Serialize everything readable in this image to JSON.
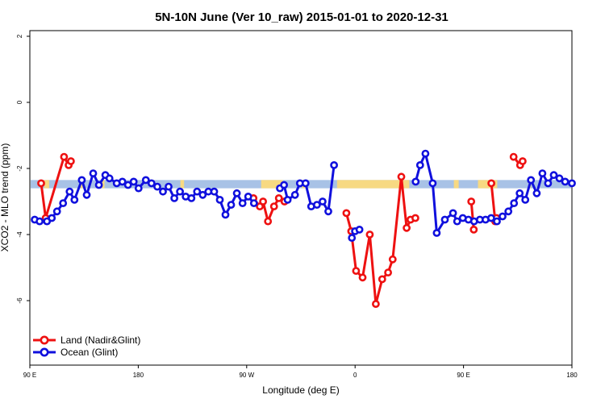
{
  "chart_data": {
    "type": "line",
    "title": "5N-10N June (Ver 10_raw)   2015-01-01 to 2020-12-31",
    "xlabel": "Longitude (deg E)",
    "ylabel": "XCO2 - MLO trend (ppm)",
    "x_ticks": [
      90,
      180,
      270,
      360,
      450,
      540
    ],
    "x_tick_labels": [
      "90 E",
      "180",
      "90 W",
      "0",
      "90 E",
      "180"
    ],
    "xlim": [
      90,
      540
    ],
    "y_ticks": [
      2,
      0,
      -2,
      -4,
      -6
    ],
    "y_tick_labels": [
      "2",
      "0",
      "-2",
      "-4",
      "-6"
    ],
    "ylim": [
      -8,
      2.1
    ],
    "legend_position": "bottom-left",
    "colors": {
      "land": "#ee1111",
      "ocean": "#1010dd",
      "map_ocean": "#a8c2e6",
      "map_land": "#f7d982"
    },
    "series": [
      {
        "name": "Land (Nadir&Glint)",
        "segments": [
          [
            [
              99.4,
              -2.45
            ],
            [
              103.1,
              -3.5
            ],
            [
              118.4,
              -1.65
            ],
            [
              122.2,
              -1.9
            ],
            [
              124.1,
              -1.78
            ]
          ],
          [
            [
              275.6,
              -2.9
            ],
            [
              280.9,
              -3.15
            ],
            [
              283.6,
              -3.0
            ],
            [
              287.7,
              -3.6
            ],
            [
              292.7,
              -3.15
            ],
            [
              296.7,
              -2.9
            ],
            [
              301.4,
              -3.0
            ]
          ],
          [
            [
              352.8,
              -3.35
            ],
            [
              356.8,
              -3.9
            ],
            [
              360.8,
              -5.1
            ],
            [
              366.2,
              -5.3
            ],
            [
              372.2,
              -4.0
            ],
            [
              377.2,
              -6.1
            ],
            [
              382.5,
              -5.35
            ],
            [
              387.4,
              -5.15
            ],
            [
              391.2,
              -4.75
            ],
            [
              398.4,
              -2.25
            ],
            [
              402.8,
              -3.8
            ],
            [
              406.0,
              -3.55
            ],
            [
              410.0,
              -3.5
            ]
          ],
          [
            [
              456.4,
              -3.0
            ],
            [
              458.5,
              -3.85
            ]
          ],
          [
            [
              473.1,
              -2.45
            ],
            [
              476.3,
              -3.6
            ]
          ],
          [
            [
              477.4,
              -3.5
            ]
          ],
          [
            [
              491.6,
              -1.65
            ],
            [
              497.0,
              -1.9
            ],
            [
              499.1,
              -1.78
            ]
          ]
        ]
      },
      {
        "name": "Ocean (Glint)",
        "segments": [
          [
            [
              94.0,
              -3.55
            ],
            [
              98.1,
              -3.6
            ],
            [
              104.2,
              -3.6
            ],
            [
              108.2,
              -3.5
            ],
            [
              112.6,
              -3.3
            ],
            [
              117.6,
              -3.05
            ],
            [
              123.0,
              -2.7
            ],
            [
              127.0,
              -2.95
            ],
            [
              133.1,
              -2.35
            ],
            [
              137.2,
              -2.8
            ],
            [
              142.6,
              -2.15
            ],
            [
              147.3,
              -2.5
            ],
            [
              152.7,
              -2.2
            ],
            [
              156.1,
              -2.3
            ],
            [
              162.1,
              -2.45
            ],
            [
              166.8,
              -2.4
            ],
            [
              171.5,
              -2.5
            ],
            [
              176.2,
              -2.4
            ],
            [
              180.3,
              -2.6
            ],
            [
              186.3,
              -2.35
            ],
            [
              191.0,
              -2.45
            ],
            [
              195.8,
              -2.55
            ],
            [
              200.5,
              -2.7
            ],
            [
              205.2,
              -2.55
            ],
            [
              209.9,
              -2.9
            ],
            [
              214.6,
              -2.7
            ],
            [
              219.4,
              -2.85
            ],
            [
              224.1,
              -2.9
            ],
            [
              228.8,
              -2.7
            ],
            [
              233.5,
              -2.8
            ],
            [
              238.2,
              -2.7
            ],
            [
              243.0,
              -2.7
            ],
            [
              247.7,
              -2.95
            ],
            [
              252.4,
              -3.4
            ],
            [
              257.1,
              -3.1
            ],
            [
              261.8,
              -2.75
            ],
            [
              266.6,
              -3.05
            ],
            [
              271.3,
              -2.85
            ],
            [
              276.0,
              -3.05
            ]
          ],
          [
            [
              297.6,
              -2.6
            ],
            [
              301.0,
              -2.5
            ],
            [
              304.0,
              -2.95
            ],
            [
              310.1,
              -2.8
            ],
            [
              314.2,
              -2.45
            ],
            [
              318.9,
              -2.45
            ],
            [
              323.6,
              -3.15
            ],
            [
              328.3,
              -3.1
            ],
            [
              333.0,
              -3.0
            ],
            [
              337.8,
              -3.3
            ],
            [
              342.5,
              -1.9
            ]
          ],
          [
            [
              357.3,
              -4.1
            ],
            [
              359.9,
              -3.9
            ],
            [
              363.6,
              -3.85
            ]
          ],
          [
            [
              410.3,
              -2.4
            ],
            [
              414.0,
              -1.9
            ],
            [
              418.4,
              -1.55
            ],
            [
              424.4,
              -2.45
            ],
            [
              427.8,
              -3.95
            ],
            [
              434.5,
              -3.55
            ],
            [
              441.3,
              -3.35
            ],
            [
              444.7,
              -3.6
            ],
            [
              449.4,
              -3.5
            ],
            [
              454.1,
              -3.55
            ],
            [
              458.8,
              -3.6
            ],
            [
              463.6,
              -3.55
            ],
            [
              468.3,
              -3.55
            ],
            [
              473.0,
              -3.5
            ],
            [
              477.7,
              -3.6
            ],
            [
              482.4,
              -3.45
            ],
            [
              487.2,
              -3.3
            ],
            [
              491.9,
              -3.05
            ],
            [
              496.6,
              -2.75
            ],
            [
              501.3,
              -2.95
            ],
            [
              506.0,
              -2.35
            ],
            [
              510.8,
              -2.75
            ],
            [
              515.5,
              -2.15
            ],
            [
              520.2,
              -2.45
            ],
            [
              524.9,
              -2.2
            ],
            [
              529.6,
              -2.3
            ],
            [
              534.4,
              -2.4
            ],
            [
              540.0,
              -2.45
            ]
          ]
        ]
      }
    ],
    "map_band": {
      "y_range": [
        -2.35,
        -2.6
      ],
      "land_segments": [
        [
          102,
          106
        ],
        [
          132,
          134
        ],
        [
          150,
          152
        ],
        [
          215,
          218
        ],
        [
          282,
          300
        ],
        [
          316,
          320
        ],
        [
          345,
          405
        ],
        [
          442,
          446
        ],
        [
          462,
          478
        ],
        [
          504,
          506
        ]
      ]
    }
  }
}
